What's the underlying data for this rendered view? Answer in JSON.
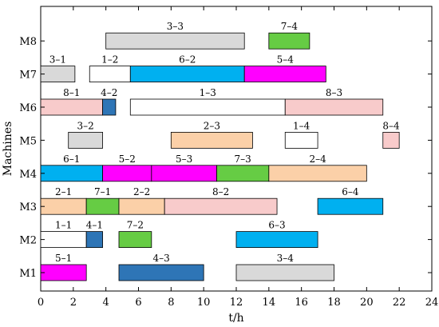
{
  "chart_data": {
    "type": "gantt",
    "title": "",
    "xlabel": "t/h",
    "ylabel": "Machines",
    "xlim": [
      0,
      24
    ],
    "xticks": [
      0,
      2,
      4,
      6,
      8,
      10,
      12,
      14,
      16,
      18,
      20,
      22,
      24
    ],
    "grid": false,
    "machines": [
      "M1",
      "M2",
      "M3",
      "M4",
      "M5",
      "M6",
      "M7",
      "M8"
    ],
    "colors": {
      "job1": "#ffffff",
      "job2": "#fbd0a8",
      "job3": "#d9d9d9",
      "job4": "#2e75b6",
      "job5": "#ff00ff",
      "job6": "#00b0f0",
      "job7": "#66cc44",
      "job8": "#f8cbcb"
    },
    "tasks": [
      {
        "machine": "M8",
        "label": "3–3",
        "job": 3,
        "start": 4.0,
        "end": 12.5
      },
      {
        "machine": "M8",
        "label": "7–4",
        "job": 7,
        "start": 14.0,
        "end": 16.5
      },
      {
        "machine": "M7",
        "label": "3–1",
        "job": 3,
        "start": 0.0,
        "end": 2.1
      },
      {
        "machine": "M7",
        "label": "1–2",
        "job": 1,
        "start": 3.0,
        "end": 5.5
      },
      {
        "machine": "M7",
        "label": "6–2",
        "job": 6,
        "start": 5.5,
        "end": 12.5
      },
      {
        "machine": "M7",
        "label": "5–4",
        "job": 5,
        "start": 12.5,
        "end": 17.5
      },
      {
        "machine": "M6",
        "label": "8–1",
        "job": 8,
        "start": 0.0,
        "end": 3.8
      },
      {
        "machine": "M6",
        "label": "4–2",
        "job": 4,
        "start": 3.8,
        "end": 4.6
      },
      {
        "machine": "M6",
        "label": "1–3",
        "job": 1,
        "start": 5.5,
        "end": 15.0
      },
      {
        "machine": "M6",
        "label": "8–3",
        "job": 8,
        "start": 15.0,
        "end": 21.0
      },
      {
        "machine": "M5",
        "label": "3–2",
        "job": 3,
        "start": 1.7,
        "end": 3.8
      },
      {
        "machine": "M5",
        "label": "2–3",
        "job": 2,
        "start": 8.0,
        "end": 13.0
      },
      {
        "machine": "M5",
        "label": "1–4",
        "job": 1,
        "start": 15.0,
        "end": 17.0
      },
      {
        "machine": "M5",
        "label": "8–4",
        "job": 8,
        "start": 21.0,
        "end": 22.0
      },
      {
        "machine": "M4",
        "label": "6–1",
        "job": 6,
        "start": 0.0,
        "end": 3.8
      },
      {
        "machine": "M4",
        "label": "5–2",
        "job": 5,
        "start": 3.8,
        "end": 6.8
      },
      {
        "machine": "M4",
        "label": "5–3",
        "job": 5,
        "start": 6.8,
        "end": 10.8
      },
      {
        "machine": "M4",
        "label": "7–3",
        "job": 7,
        "start": 10.8,
        "end": 14.0
      },
      {
        "machine": "M4",
        "label": "2–4",
        "job": 2,
        "start": 14.0,
        "end": 20.0
      },
      {
        "machine": "M3",
        "label": "2–1",
        "job": 2,
        "start": 0.0,
        "end": 2.8
      },
      {
        "machine": "M3",
        "label": "7–1",
        "job": 7,
        "start": 2.8,
        "end": 4.8
      },
      {
        "machine": "M3",
        "label": "2–2",
        "job": 2,
        "start": 4.8,
        "end": 7.6
      },
      {
        "machine": "M3",
        "label": "8–2",
        "job": 8,
        "start": 7.6,
        "end": 14.5
      },
      {
        "machine": "M3",
        "label": "6–4",
        "job": 6,
        "start": 17.0,
        "end": 21.0
      },
      {
        "machine": "M2",
        "label": "1–1",
        "job": 1,
        "start": 0.0,
        "end": 2.8
      },
      {
        "machine": "M2",
        "label": "4–1",
        "job": 4,
        "start": 2.8,
        "end": 3.8
      },
      {
        "machine": "M2",
        "label": "7–2",
        "job": 7,
        "start": 4.8,
        "end": 6.8
      },
      {
        "machine": "M2",
        "label": "6–3",
        "job": 6,
        "start": 12.0,
        "end": 17.0
      },
      {
        "machine": "M1",
        "label": "5–1",
        "job": 5,
        "start": 0.0,
        "end": 2.8
      },
      {
        "machine": "M1",
        "label": "4–3",
        "job": 4,
        "start": 4.8,
        "end": 10.0
      },
      {
        "machine": "M1",
        "label": "3–4",
        "job": 3,
        "start": 12.0,
        "end": 18.0
      }
    ]
  }
}
